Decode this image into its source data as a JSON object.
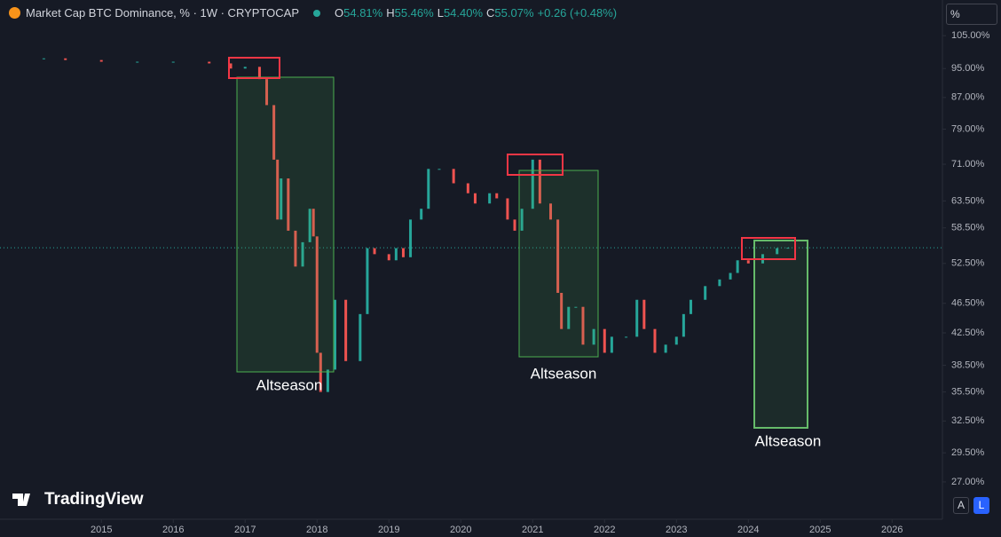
{
  "header": {
    "title": "Market Cap BTC Dominance, % · 1W · CRYPTOCAP",
    "ohlc": [
      {
        "label": "O",
        "value": "54.81%"
      },
      {
        "label": "H",
        "value": "55.46%"
      },
      {
        "label": "L",
        "value": "54.40%"
      },
      {
        "label": "C",
        "value": "55.07%"
      }
    ],
    "change": "+0.26 (+0.48%)",
    "scale_mode": "%",
    "buttons": [
      "A",
      "L"
    ],
    "brand": "TradingView"
  },
  "chart_data": {
    "type": "candle-line",
    "log_scale": true,
    "up_color": "#26a69a",
    "down_color": "#ef5350",
    "x": [
      2014.2,
      2014.5,
      2015,
      2015.5,
      2016,
      2016.5,
      2016.8,
      2017.0,
      2017.2,
      2017.3,
      2017.4,
      2017.45,
      2017.5,
      2017.6,
      2017.7,
      2017.8,
      2017.9,
      2017.95,
      2018.0,
      2018.05,
      2018.15,
      2018.25,
      2018.4,
      2018.6,
      2018.7,
      2018.8,
      2019.0,
      2019.1,
      2019.2,
      2019.3,
      2019.45,
      2019.55,
      2019.7,
      2019.9,
      2020.1,
      2020.2,
      2020.4,
      2020.5,
      2020.65,
      2020.75,
      2020.85,
      2021.0,
      2021.1,
      2021.25,
      2021.35,
      2021.4,
      2021.5,
      2021.6,
      2021.7,
      2021.85,
      2022.0,
      2022.1,
      2022.3,
      2022.45,
      2022.55,
      2022.7,
      2022.85,
      2023.0,
      2023.1,
      2023.2,
      2023.4,
      2023.6,
      2023.75,
      2023.85,
      2024.0,
      2024.2,
      2024.4,
      2024.55
    ],
    "values": [
      98,
      97.5,
      97,
      97,
      97,
      96.5,
      95,
      95.5,
      92,
      85,
      72,
      60,
      68,
      58,
      52,
      56,
      62,
      57,
      40,
      35.5,
      38,
      47,
      39,
      45,
      55,
      54,
      53,
      55,
      53.5,
      60,
      62,
      70,
      70,
      67,
      65,
      63,
      65,
      64,
      60,
      58,
      62,
      72,
      63,
      60,
      48,
      43,
      46,
      46,
      41,
      43,
      40,
      42,
      42,
      47,
      43,
      40,
      41,
      42,
      45,
      47,
      49,
      50,
      51,
      53,
      52.5,
      54,
      55,
      55.07
    ],
    "xlim": [
      2013.59,
      2026.7
    ],
    "xticks": [
      2015,
      2016,
      2017,
      2018,
      2019,
      2020,
      2021,
      2022,
      2023,
      2024,
      2025,
      2026
    ],
    "ylim": [
      24.1,
      109.4
    ],
    "yticks": [
      {
        "value": 105,
        "label": "105.00%"
      },
      {
        "value": 95,
        "label": "95.00%"
      },
      {
        "value": 87,
        "label": "87.00%"
      },
      {
        "value": 79,
        "label": "79.00%"
      },
      {
        "value": 71,
        "label": "71.00%"
      },
      {
        "value": 63.5,
        "label": "63.50%"
      },
      {
        "value": 58.5,
        "label": "58.50%"
      },
      {
        "value": 52.5,
        "label": "52.50%"
      },
      {
        "value": 46.5,
        "label": "46.50%"
      },
      {
        "value": 42.5,
        "label": "42.50%"
      },
      {
        "value": 38.5,
        "label": "38.50%"
      },
      {
        "value": 35.5,
        "label": "35.50%"
      },
      {
        "value": 32.5,
        "label": "32.50%"
      },
      {
        "value": 29.5,
        "label": "29.50%"
      },
      {
        "value": 27,
        "label": "27.00%"
      }
    ],
    "annotations": [
      "Altseason",
      "Altseason",
      "Altseason"
    ]
  }
}
